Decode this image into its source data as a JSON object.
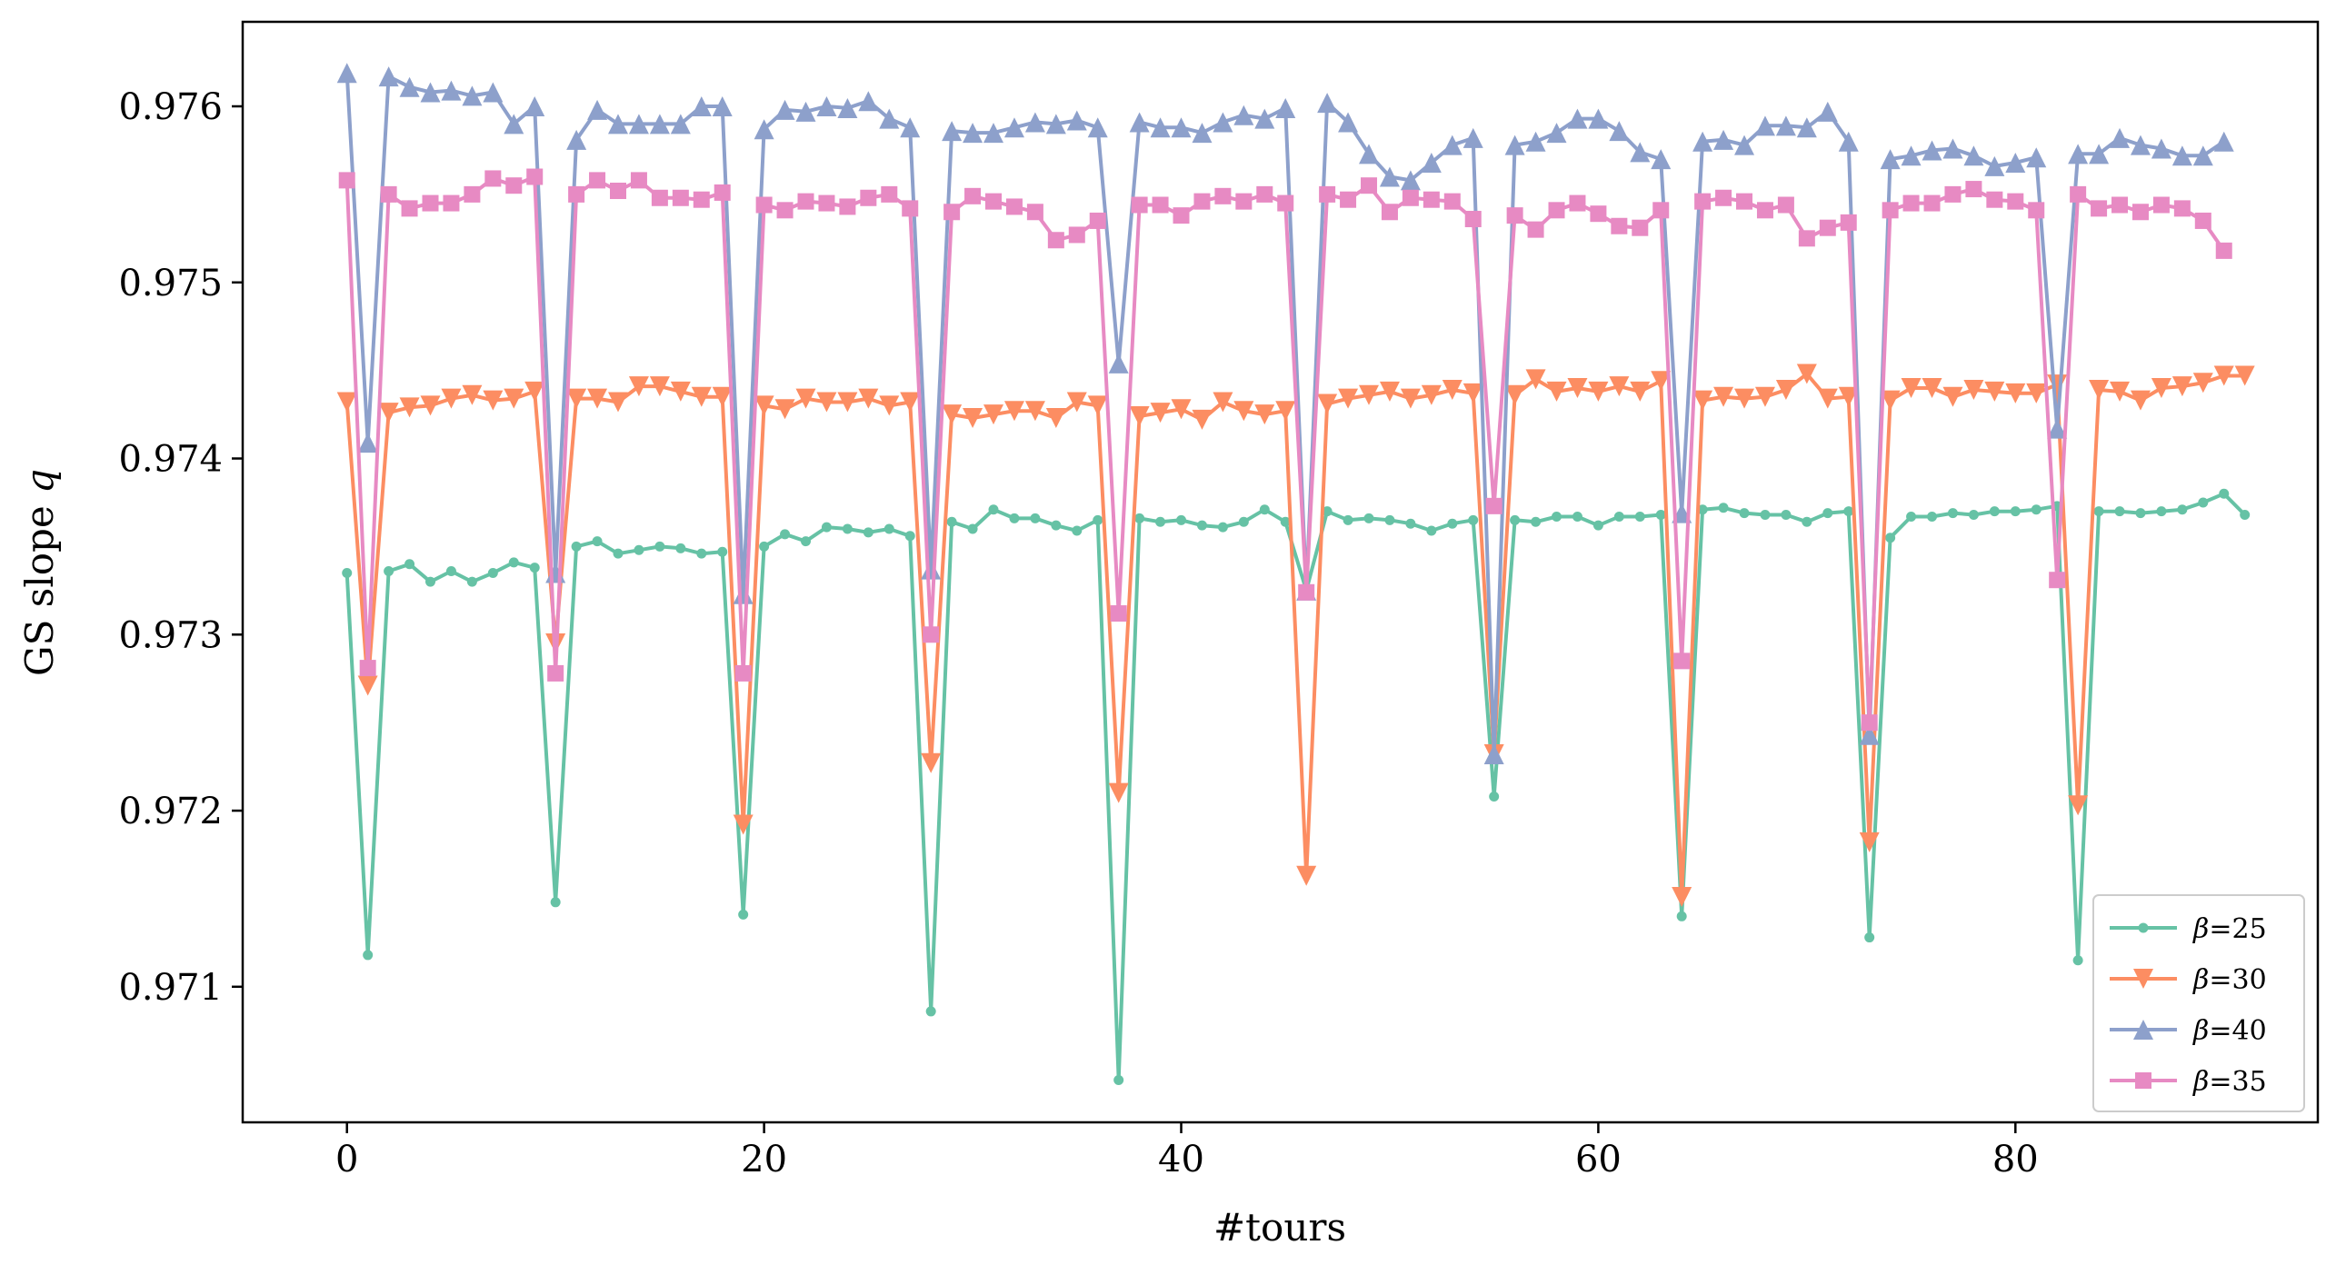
{
  "chart_data": {
    "type": "line",
    "title": "",
    "xlabel": "#tours",
    "ylabel": "GS slope",
    "ylabel_symbol": "q",
    "xlim": [
      -5.0,
      94.5
    ],
    "ylim": [
      0.97023,
      0.97648
    ],
    "x_ticks": [
      0,
      20,
      40,
      60,
      80
    ],
    "x_tick_labels": [
      "0",
      "20",
      "40",
      "60",
      "80"
    ],
    "y_ticks": [
      0.971,
      0.972,
      0.973,
      0.974,
      0.975,
      0.976
    ],
    "y_tick_labels": [
      "0.971",
      "0.972",
      "0.973",
      "0.974",
      "0.975",
      "0.976"
    ],
    "legend_position": "lower-right",
    "series": [
      {
        "name": "β=25",
        "legend_symbol": "β",
        "legend_value": "=25",
        "color": "#66c2a5",
        "marker": "dot",
        "values": [
          0.97335,
          0.97118,
          0.97336,
          0.9734,
          0.9733,
          0.97336,
          0.9733,
          0.97335,
          0.97341,
          0.97338,
          0.97148,
          0.9735,
          0.97353,
          0.97346,
          0.97348,
          0.9735,
          0.97349,
          0.97346,
          0.97347,
          0.97141,
          0.9735,
          0.97357,
          0.97353,
          0.97361,
          0.9736,
          0.97358,
          0.9736,
          0.97356,
          0.97086,
          0.97364,
          0.9736,
          0.97371,
          0.97366,
          0.97366,
          0.97362,
          0.97359,
          0.97365,
          0.97047,
          0.97366,
          0.97364,
          0.97365,
          0.97362,
          0.97361,
          0.97364,
          0.97371,
          0.97364,
          0.97325,
          0.9737,
          0.97365,
          0.97366,
          0.97365,
          0.97363,
          0.97359,
          0.97363,
          0.97365,
          0.97208,
          0.97365,
          0.97364,
          0.97367,
          0.97367,
          0.97362,
          0.97367,
          0.97367,
          0.97368,
          0.9714,
          0.97371,
          0.97372,
          0.97369,
          0.97368,
          0.97368,
          0.97364,
          0.97369,
          0.9737,
          0.97128,
          0.97355,
          0.97367,
          0.97367,
          0.97369,
          0.97368,
          0.9737,
          0.9737,
          0.97371,
          0.97373,
          0.97115,
          0.9737,
          0.9737,
          0.97369,
          0.9737,
          0.97371,
          0.97375,
          0.9738,
          0.97368
        ]
      },
      {
        "name": "β=30",
        "legend_symbol": "β",
        "legend_value": "=30",
        "color": "#fc8d62",
        "marker": "triangle-down",
        "values": [
          0.97432,
          0.97271,
          0.97426,
          0.97429,
          0.9743,
          0.97434,
          0.97436,
          0.97433,
          0.97434,
          0.97438,
          0.97295,
          0.97434,
          0.97434,
          0.97432,
          0.97441,
          0.97441,
          0.97438,
          0.97435,
          0.97435,
          0.97192,
          0.9743,
          0.97428,
          0.97434,
          0.97432,
          0.97432,
          0.97434,
          0.9743,
          0.97432,
          0.97227,
          0.97425,
          0.97423,
          0.97425,
          0.97427,
          0.97427,
          0.97423,
          0.97432,
          0.9743,
          0.9721,
          0.97424,
          0.97426,
          0.97428,
          0.97422,
          0.97432,
          0.97427,
          0.97425,
          0.97427,
          0.97163,
          0.97431,
          0.97434,
          0.97436,
          0.97438,
          0.97434,
          0.97436,
          0.97439,
          0.97437,
          0.97232,
          0.97436,
          0.97445,
          0.97438,
          0.9744,
          0.97438,
          0.97441,
          0.97438,
          0.97444,
          0.97151,
          0.97433,
          0.97435,
          0.97434,
          0.97435,
          0.97439,
          0.97448,
          0.97434,
          0.97435,
          0.97182,
          0.97433,
          0.9744,
          0.9744,
          0.97435,
          0.97439,
          0.97438,
          0.97437,
          0.97437,
          0.97442,
          0.97203,
          0.97439,
          0.97438,
          0.97433,
          0.9744,
          0.97441,
          0.97443,
          0.97447,
          0.97447
        ]
      },
      {
        "name": "β=40",
        "legend_symbol": "β",
        "legend_value": "=40",
        "color": "#8da0cb",
        "marker": "triangle-up",
        "values": [
          0.97619,
          0.97409,
          0.97617,
          0.97611,
          0.97608,
          0.97609,
          0.97606,
          0.97608,
          0.9759,
          0.976,
          0.97335,
          0.97581,
          0.97598,
          0.9759,
          0.9759,
          0.9759,
          0.9759,
          0.976,
          0.976,
          0.97323,
          0.97587,
          0.97598,
          0.97597,
          0.976,
          0.97599,
          0.97603,
          0.97593,
          0.97588,
          0.97337,
          0.97586,
          0.97585,
          0.97585,
          0.97588,
          0.97591,
          0.9759,
          0.97592,
          0.97588,
          0.97454,
          0.97591,
          0.97588,
          0.97588,
          0.97585,
          0.97591,
          0.97595,
          0.97593,
          0.97599,
          0.97325,
          0.97602,
          0.97591,
          0.97573,
          0.9756,
          0.97558,
          0.97568,
          0.97578,
          0.97582,
          0.97232,
          0.97578,
          0.9758,
          0.97585,
          0.97593,
          0.97593,
          0.97586,
          0.97574,
          0.9757,
          0.97369,
          0.9758,
          0.97581,
          0.97578,
          0.97589,
          0.97589,
          0.97588,
          0.97597,
          0.9758,
          0.97243,
          0.9757,
          0.97572,
          0.97575,
          0.97576,
          0.97572,
          0.97566,
          0.97568,
          0.97571,
          0.97417,
          0.97573,
          0.97573,
          0.97582,
          0.97578,
          0.97576,
          0.97572,
          0.97572,
          0.9758
        ]
      },
      {
        "name": "β=35",
        "legend_symbol": "β",
        "legend_value": "=35",
        "color": "#e78ac3",
        "marker": "square",
        "values": [
          0.97558,
          0.97281,
          0.9755,
          0.97542,
          0.97545,
          0.97545,
          0.9755,
          0.97559,
          0.97555,
          0.9756,
          0.97278,
          0.9755,
          0.97558,
          0.97552,
          0.97558,
          0.97548,
          0.97548,
          0.97547,
          0.97551,
          0.97278,
          0.97544,
          0.97541,
          0.97546,
          0.97545,
          0.97543,
          0.97548,
          0.9755,
          0.97542,
          0.973,
          0.9754,
          0.97549,
          0.97546,
          0.97543,
          0.9754,
          0.97524,
          0.97527,
          0.97535,
          0.97312,
          0.97544,
          0.97544,
          0.97538,
          0.97546,
          0.97549,
          0.97546,
          0.9755,
          0.97545,
          0.97324,
          0.9755,
          0.97547,
          0.97555,
          0.9754,
          0.97548,
          0.97547,
          0.97546,
          0.97536,
          0.97373,
          0.97538,
          0.9753,
          0.97541,
          0.97545,
          0.97539,
          0.97532,
          0.97531,
          0.97541,
          0.97285,
          0.97546,
          0.97548,
          0.97546,
          0.97541,
          0.97544,
          0.97525,
          0.97531,
          0.97534,
          0.9725,
          0.97541,
          0.97545,
          0.97545,
          0.9755,
          0.97553,
          0.97547,
          0.97546,
          0.97541,
          0.97331,
          0.9755,
          0.97542,
          0.97544,
          0.9754,
          0.97544,
          0.97542,
          0.97535,
          0.97518
        ]
      }
    ]
  }
}
